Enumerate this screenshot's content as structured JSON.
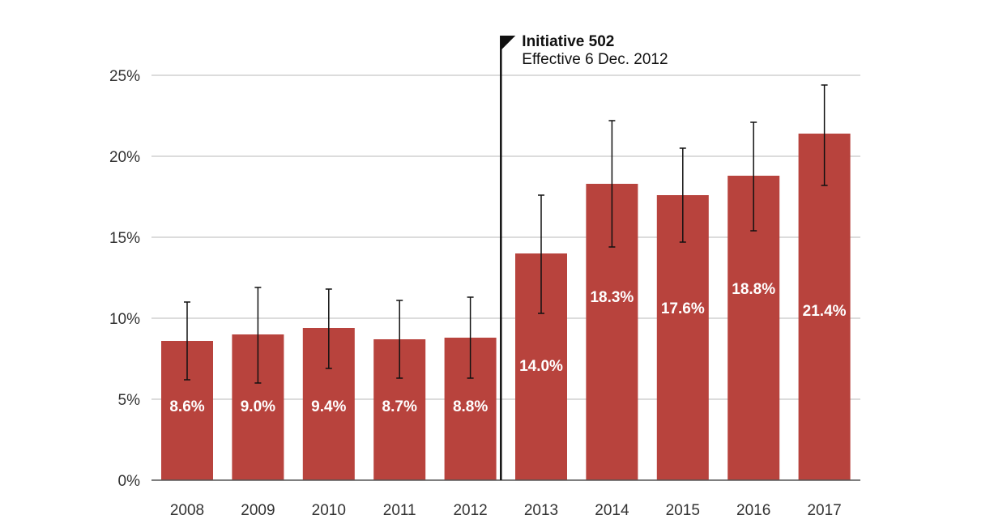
{
  "chart_data": {
    "type": "bar",
    "title": "",
    "xlabel": "",
    "ylabel": "",
    "categories": [
      "2008",
      "2009",
      "2010",
      "2011",
      "2012",
      "2013",
      "2014",
      "2015",
      "2016",
      "2017"
    ],
    "values": [
      8.6,
      9.0,
      9.4,
      8.7,
      8.8,
      14.0,
      18.3,
      17.6,
      18.8,
      21.4
    ],
    "value_labels": [
      "8.6%",
      "9.0%",
      "9.4%",
      "8.7%",
      "8.8%",
      "14.0%",
      "18.3%",
      "17.6%",
      "18.8%",
      "21.4%"
    ],
    "error_bars": [
      {
        "low": 6.2,
        "high": 11.0
      },
      {
        "low": 6.0,
        "high": 11.9
      },
      {
        "low": 6.9,
        "high": 11.8
      },
      {
        "low": 6.3,
        "high": 11.1
      },
      {
        "low": 6.3,
        "high": 11.3
      },
      {
        "low": 10.3,
        "high": 17.6
      },
      {
        "low": 14.4,
        "high": 22.2
      },
      {
        "low": 14.7,
        "high": 20.5
      },
      {
        "low": 15.4,
        "high": 22.1
      },
      {
        "low": 18.2,
        "high": 24.4
      }
    ],
    "y_ticks": [
      0,
      5,
      10,
      15,
      20,
      25
    ],
    "y_tick_labels": [
      "0%",
      "5%",
      "10%",
      "15%",
      "20%",
      "25%"
    ],
    "ylim": [
      0,
      25
    ],
    "grid": true,
    "bar_color": "#b8433d",
    "annotation": {
      "title": "Initiative 502",
      "subtitle": "Effective 6 Dec. 2012",
      "between_categories": [
        "2012",
        "2013"
      ]
    }
  }
}
